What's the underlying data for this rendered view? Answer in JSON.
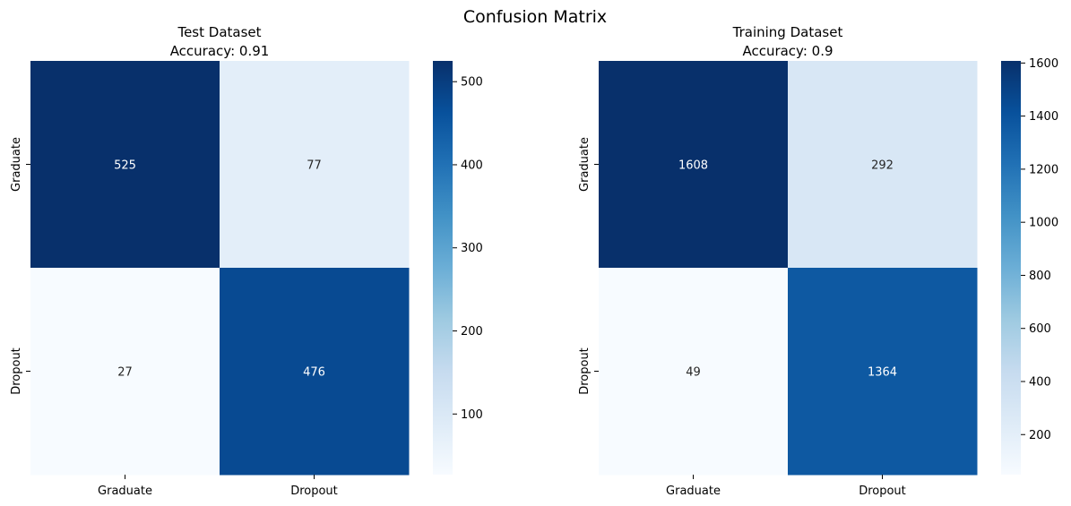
{
  "figure": {
    "suptitle": "Confusion Matrix"
  },
  "chart_data": [
    {
      "type": "heatmap",
      "title_line1": "Test Dataset",
      "title_line2": "Accuracy: 0.91",
      "row_labels": [
        "Graduate",
        "Dropout"
      ],
      "col_labels": [
        "Graduate",
        "Dropout"
      ],
      "values": [
        [
          525,
          77
        ],
        [
          27,
          476
        ]
      ],
      "colormap": "Blues",
      "colorbar": {
        "vmin": 27,
        "vmax": 525,
        "ticks": [
          100,
          200,
          300,
          400,
          500
        ]
      }
    },
    {
      "type": "heatmap",
      "title_line1": "Training Dataset",
      "title_line2": "Accuracy: 0.9",
      "row_labels": [
        "Graduate",
        "Dropout"
      ],
      "col_labels": [
        "Graduate",
        "Dropout"
      ],
      "values": [
        [
          1608,
          292
        ],
        [
          49,
          1364
        ]
      ],
      "colormap": "Blues",
      "colorbar": {
        "vmin": 49,
        "vmax": 1608,
        "ticks": [
          200,
          400,
          600,
          800,
          1000,
          1200,
          1400,
          1600
        ]
      }
    }
  ]
}
